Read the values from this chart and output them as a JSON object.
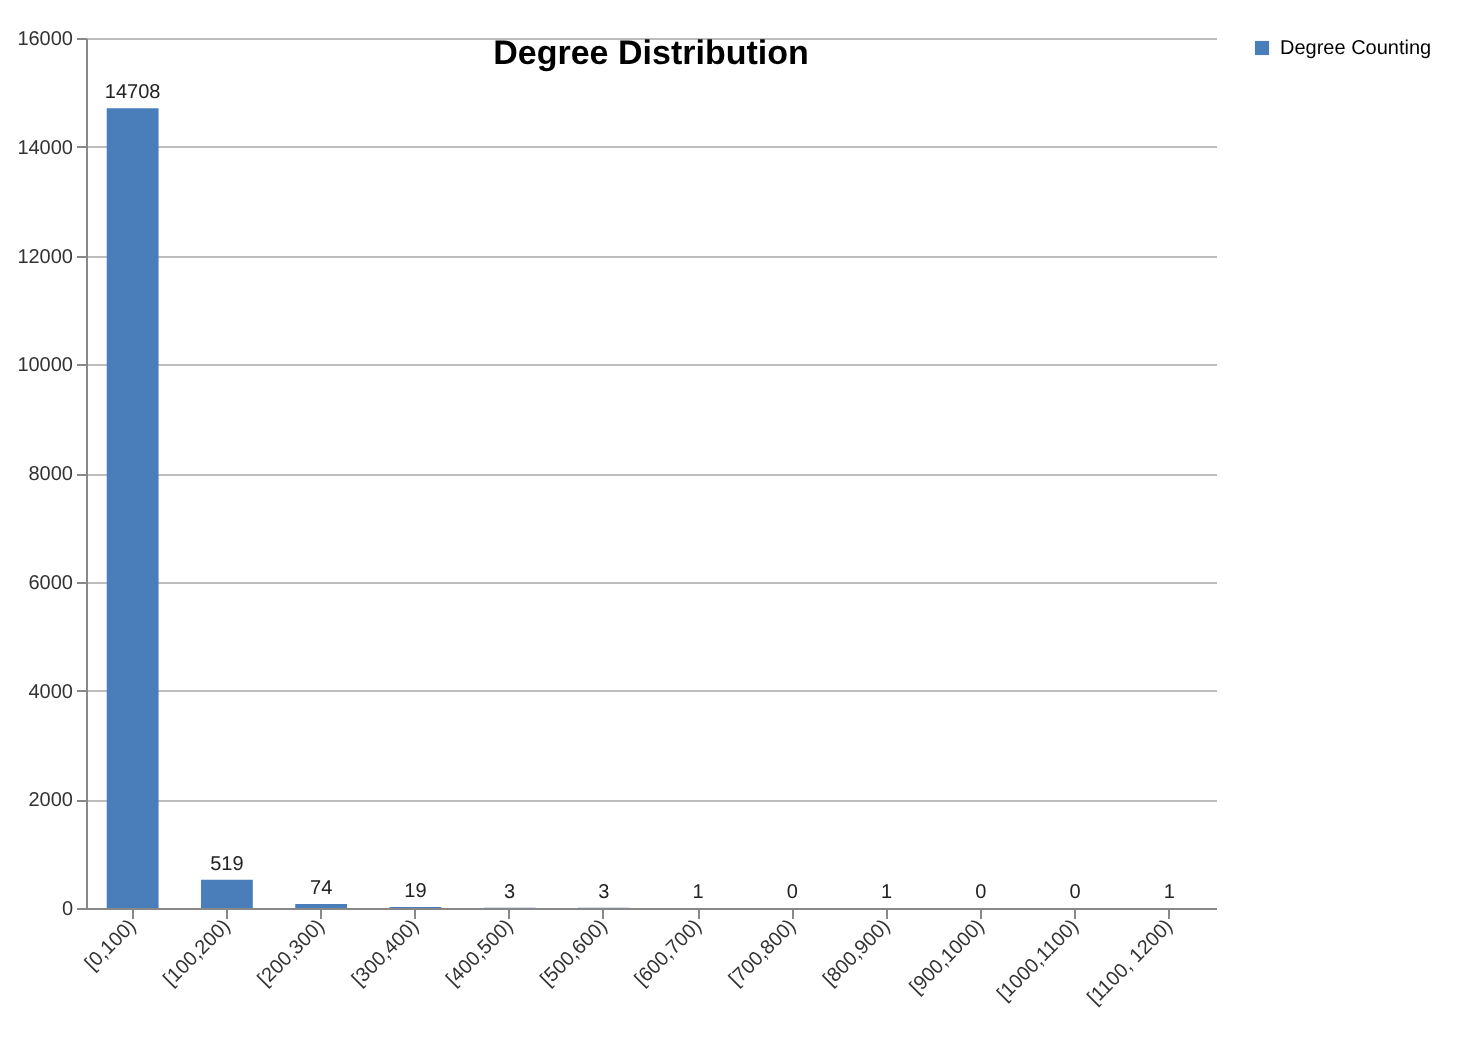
{
  "chart_data": {
    "type": "bar",
    "title": "Degree Distribution",
    "categories": [
      "[0,100)",
      "[100,200)",
      "[200,300)",
      "[300,400)",
      "[400,500)",
      "[500,600)",
      "[600,700)",
      "[700,800)",
      "[800,900)",
      "[900,1000)",
      "[1000,1100)",
      "[1100, 1200)"
    ],
    "series": [
      {
        "name": "Degree Counting",
        "color": "#4a7ebb",
        "values": [
          14708,
          519,
          74,
          19,
          3,
          3,
          1,
          0,
          1,
          0,
          0,
          1
        ]
      }
    ],
    "ylim": [
      0,
      16000
    ],
    "yticks": [
      0,
      2000,
      4000,
      6000,
      8000,
      10000,
      12000,
      14000,
      16000
    ],
    "grid": "y",
    "legend": "right",
    "data_labels": true
  }
}
